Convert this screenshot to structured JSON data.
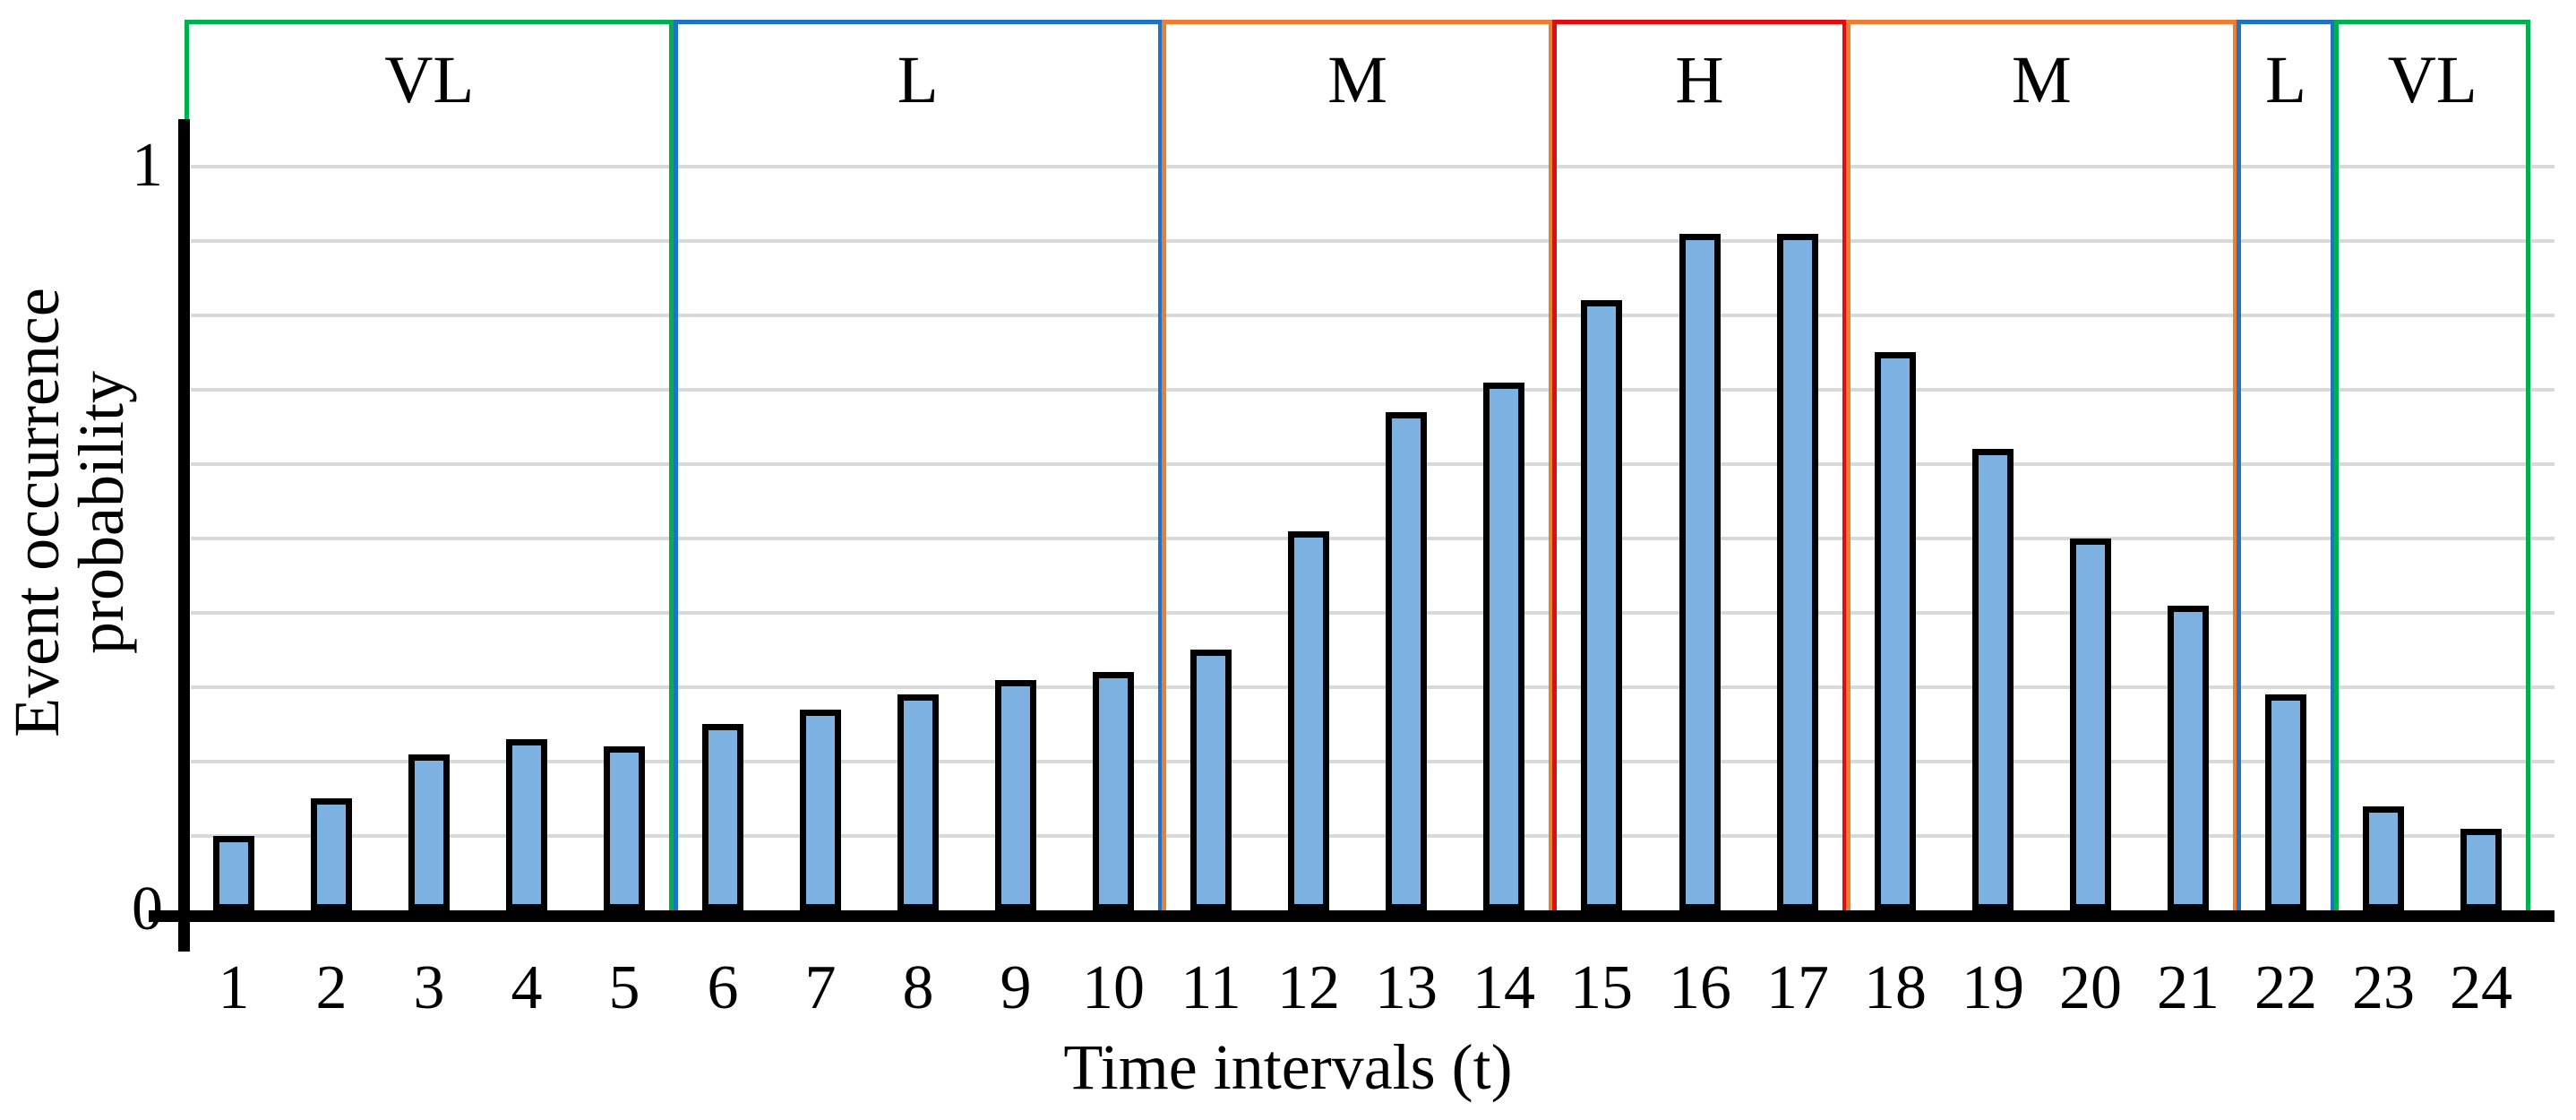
{
  "chart_data": {
    "type": "bar",
    "title": "",
    "xlabel": "Time intervals (t)",
    "ylabel": "Event occurrence probability",
    "categories": [
      "1",
      "2",
      "3",
      "4",
      "5",
      "6",
      "7",
      "8",
      "9",
      "10",
      "11",
      "12",
      "13",
      "14",
      "15",
      "16",
      "17",
      "18",
      "19",
      "20",
      "21",
      "22",
      "23",
      "24"
    ],
    "values": [
      0.1,
      0.15,
      0.21,
      0.23,
      0.22,
      0.25,
      0.27,
      0.29,
      0.31,
      0.32,
      0.35,
      0.51,
      0.67,
      0.71,
      0.82,
      0.91,
      0.91,
      0.75,
      0.62,
      0.5,
      0.41,
      0.29,
      0.14,
      0.11
    ],
    "ylim": [
      0,
      1
    ],
    "y_tick_labels": [
      "0",
      "1"
    ],
    "gridline_interval": 0.1,
    "grid": true,
    "legend": false,
    "bar_fill": "#7CB1E2",
    "bar_border": "#000000",
    "zones": [
      {
        "label": "VL",
        "color": "#00B050",
        "from": 1,
        "to": 5
      },
      {
        "label": "L",
        "color": "#2073C2",
        "from": 6,
        "to": 10
      },
      {
        "label": "M",
        "color": "#ED7D31",
        "from": 11,
        "to": 14
      },
      {
        "label": "H",
        "color": "#E00C10",
        "from": 15,
        "to": 17
      },
      {
        "label": "M",
        "color": "#ED7D31",
        "from": 18,
        "to": 21
      },
      {
        "label": "L",
        "color": "#2073C2",
        "from": 22,
        "to": 22
      },
      {
        "label": "VL",
        "color": "#00B050",
        "from": 23,
        "to": 24
      }
    ]
  },
  "colors": {
    "gridline": "#D9D9D9",
    "axis": "#000000",
    "background": "#FFFFFF"
  }
}
